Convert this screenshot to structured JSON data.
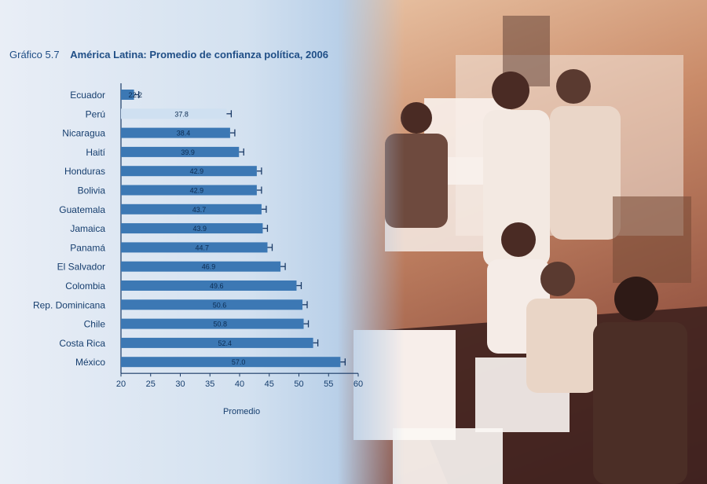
{
  "chart_data": {
    "type": "bar",
    "orientation": "horizontal",
    "figure_number": "Gráfico 5.7",
    "title": "América Latina: Promedio de confianza política, 2006",
    "xlabel": "Promedio",
    "xlim": [
      20,
      60
    ],
    "xticks": [
      20,
      25,
      30,
      35,
      40,
      45,
      50,
      55,
      60
    ],
    "categories": [
      "Ecuador",
      "Perú",
      "Nicaragua",
      "Haití",
      "Honduras",
      "Bolivia",
      "Guatemala",
      "Jamaica",
      "Panamá",
      "El Salvador",
      "Colombia",
      "Rep. Dominicana",
      "Chile",
      "Costa Rica",
      "México"
    ],
    "values": [
      22.2,
      37.8,
      38.4,
      39.9,
      42.9,
      42.9,
      43.7,
      43.9,
      44.7,
      46.9,
      49.6,
      50.6,
      50.8,
      52.4,
      57.0
    ],
    "value_labels": [
      "22.2",
      "37.8",
      "38.4",
      "39.9",
      "42.9",
      "42.9",
      "43.7",
      "43.9",
      "44.7",
      "46.9",
      "49.6",
      "50.6",
      "50.8",
      "52.4",
      "57.0"
    ],
    "highlighted_category": "Perú",
    "error_bars": true,
    "grid": false,
    "colors": {
      "bar": "#3c78b4",
      "highlight": "#cfe0f1",
      "text": "#163e6e"
    }
  }
}
